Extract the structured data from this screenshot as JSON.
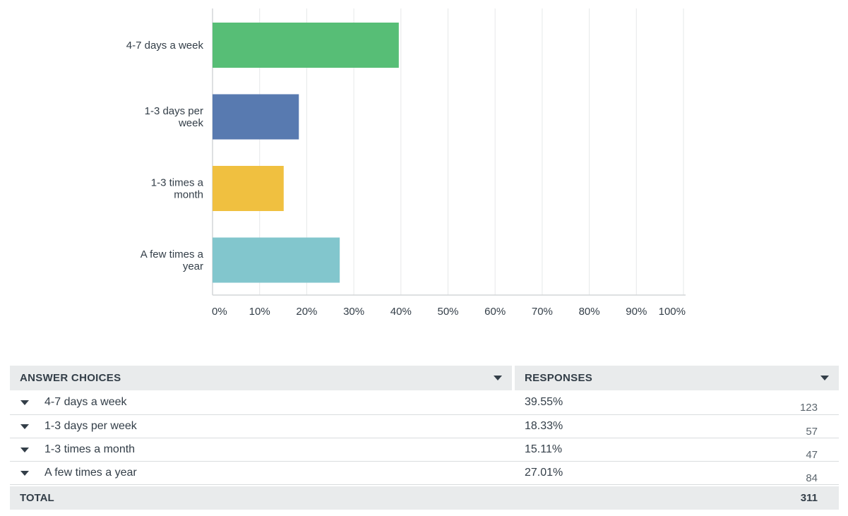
{
  "chart_data": {
    "type": "bar",
    "orientation": "horizontal",
    "categories": [
      "4-7 days a week",
      "1-3 days per week",
      "1-3 times a month",
      "A few times a year"
    ],
    "category_lines": [
      [
        "4-7 days a week"
      ],
      [
        "1-3 days per",
        "week"
      ],
      [
        "1-3 times a",
        "month"
      ],
      [
        "A few times a",
        "year"
      ]
    ],
    "values": [
      39.55,
      18.33,
      15.11,
      27.01
    ],
    "colors": [
      "#57be76",
      "#587ab0",
      "#f0c040",
      "#82c6cd"
    ],
    "xlim": [
      0,
      100
    ],
    "x_ticks": [
      "0%",
      "10%",
      "20%",
      "30%",
      "40%",
      "50%",
      "60%",
      "70%",
      "80%",
      "90%",
      "100%"
    ],
    "grid": true
  },
  "table": {
    "headers": {
      "choices": "ANSWER CHOICES",
      "responses": "RESPONSES"
    },
    "rows": [
      {
        "choice": "4-7 days a week",
        "percent": "39.55%",
        "count": "123"
      },
      {
        "choice": "1-3 days per week",
        "percent": "18.33%",
        "count": "57"
      },
      {
        "choice": "1-3 times a month",
        "percent": "15.11%",
        "count": "47"
      },
      {
        "choice": "A few times a year",
        "percent": "27.01%",
        "count": "84"
      }
    ],
    "total_label": "TOTAL",
    "total_value": "311"
  }
}
